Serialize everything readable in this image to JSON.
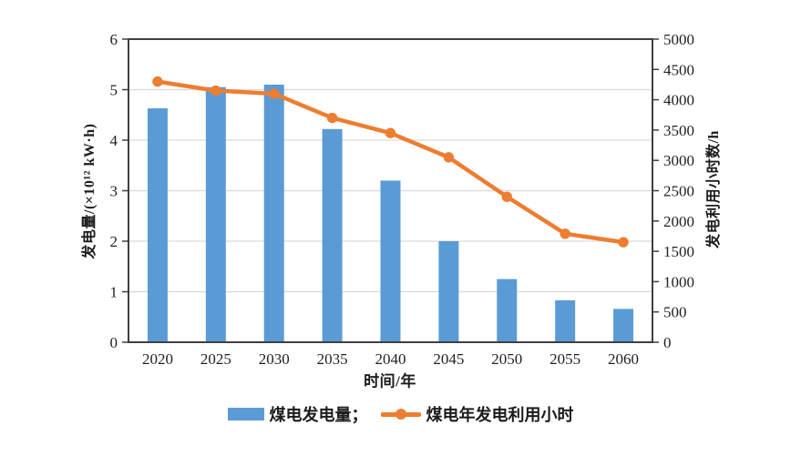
{
  "figure": {
    "background": "#ffffff",
    "axis_line_color": "#3f3f3f",
    "gridline_color": "#d9d9d9",
    "tick_label_color": "#1f1f1f"
  },
  "chart_data": {
    "type": "bar+line combo (dual y-axis)",
    "categories": [
      "2020",
      "2025",
      "2030",
      "2035",
      "2040",
      "2045",
      "2050",
      "2055",
      "2060"
    ],
    "series": [
      {
        "name": "煤电发电量",
        "type": "bar",
        "axis": "left",
        "color": "#5B9BD5",
        "values": [
          4.63,
          5.05,
          5.1,
          4.22,
          3.2,
          2.0,
          1.25,
          0.83,
          0.66
        ]
      },
      {
        "name": "煤电年发电利用小时",
        "type": "line",
        "axis": "right",
        "color": "#ED7D31",
        "values": [
          4300,
          4150,
          4100,
          3700,
          3450,
          3050,
          2400,
          1790,
          1650
        ]
      }
    ],
    "left_axis": {
      "title": "发电量/(×10¹² kW·h)",
      "min": 0,
      "max": 6,
      "step": 1
    },
    "right_axis": {
      "title": "发电利用小时数/h",
      "min": 0,
      "max": 5000,
      "step": 500
    },
    "x_axis": {
      "title": "时间/年"
    },
    "legend": [
      {
        "label": "煤电发电量；"
      },
      {
        "label": "煤电年发电利用小时"
      }
    ],
    "grid": "horizontal gridlines at left-axis integers 1-5",
    "legend_position": "bottom-center"
  }
}
